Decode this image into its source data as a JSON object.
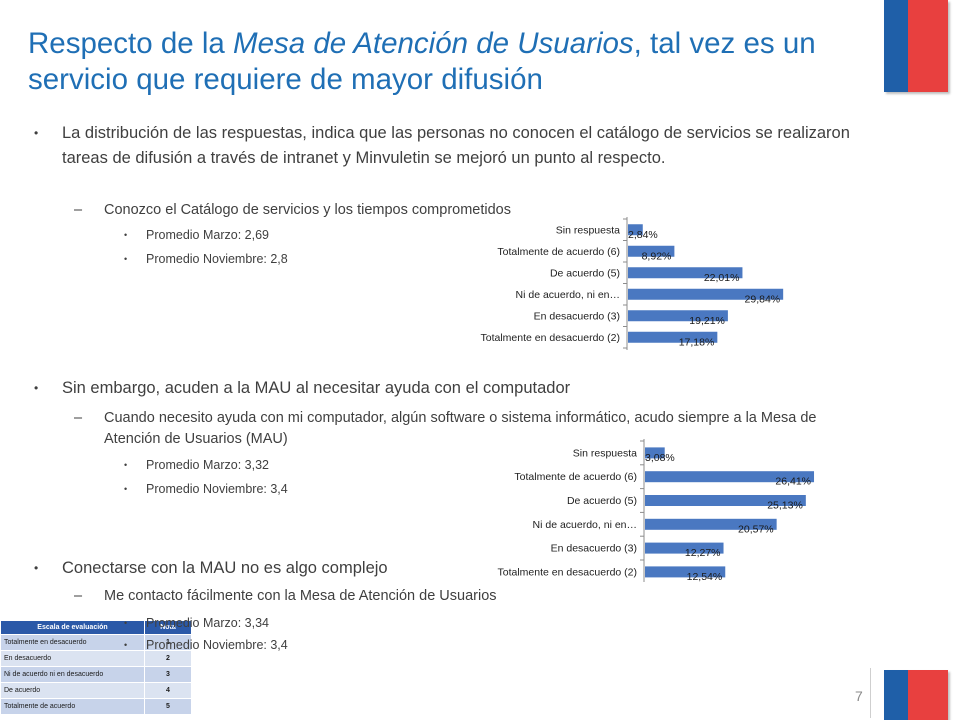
{
  "title": {
    "part1": "Respecto de la ",
    "italic": "Mesa de Atención de Usuarios",
    "part2": ", tal vez es un servicio que requiere de mayor difusión"
  },
  "colors": {
    "title": "#1f6fb5",
    "bar": "#4a78c1",
    "flag_blue": "#1f5fa8",
    "flag_red": "#e8403f"
  },
  "sections": [
    {
      "bullet": "La distribución de las respuestas, indica que las personas no conocen el catálogo de servicios se realizaron tareas de difusión a través de intranet y Minvuletin se mejoró un punto al respecto.",
      "sub": "Conozco el Catálogo de servicios y los tiempos comprometidos",
      "items": [
        "Promedio  Marzo: 2,69",
        "Promedio Noviembre:  2,8"
      ]
    },
    {
      "bullet": "Sin embargo, acuden a la MAU al necesitar ayuda con el computador",
      "sub": "Cuando necesito ayuda con mi computador, algún software o sistema informático, acudo siempre a la Mesa de Atención de Usuarios (MAU)",
      "items": [
        "Promedio Marzo:  3,32",
        "Promedio Noviembre: 3,4"
      ]
    },
    {
      "bullet": "Conectarse con la MAU no es algo complejo",
      "sub": "Me contacto fácilmente con la Mesa de Atención de Usuarios",
      "items": [
        "Promedio  Marzo: 3,34",
        "Promedio Noviembre:  3,4"
      ]
    }
  ],
  "scale_table": {
    "headers": [
      "Escala de evaluación",
      "Nota"
    ],
    "rows": [
      [
        "Totalmente en desacuerdo",
        "1"
      ],
      [
        "En desacuerdo",
        "2"
      ],
      [
        "Ni de acuerdo ni en desacuerdo",
        "3"
      ],
      [
        "De acuerdo",
        "4"
      ],
      [
        "Totalmente de acuerdo",
        "5"
      ]
    ]
  },
  "page_number": "7",
  "chart_data": [
    {
      "type": "bar",
      "orientation": "horizontal",
      "categories": [
        "Sin respuesta",
        "Totalmente de acuerdo (6)",
        "De acuerdo (5)",
        "Ni de acuerdo, ni en…",
        "En desacuerdo (3)",
        "Totalmente en desacuerdo (2)"
      ],
      "values": [
        2.84,
        8.92,
        22.01,
        29.84,
        19.21,
        17.18
      ],
      "labels": [
        "2,84%",
        "8,92%",
        "22,01%",
        "29,84%",
        "19,21%",
        "17,18%"
      ],
      "xlim": [
        0,
        40
      ],
      "grid": false,
      "legend": "none"
    },
    {
      "type": "bar",
      "orientation": "horizontal",
      "categories": [
        "Sin respuesta",
        "Totalmente de acuerdo (6)",
        "De acuerdo (5)",
        "Ni de acuerdo, ni en…",
        "En desacuerdo (3)",
        "Totalmente en desacuerdo (2)"
      ],
      "values": [
        3.08,
        26.41,
        25.13,
        20.57,
        12.27,
        12.54
      ],
      "labels": [
        "3,08%",
        "26,41%",
        "25,13%",
        "20,57%",
        "12,27%",
        "12,54%"
      ],
      "xlim": [
        0,
        40
      ],
      "grid": false,
      "legend": "none"
    }
  ]
}
